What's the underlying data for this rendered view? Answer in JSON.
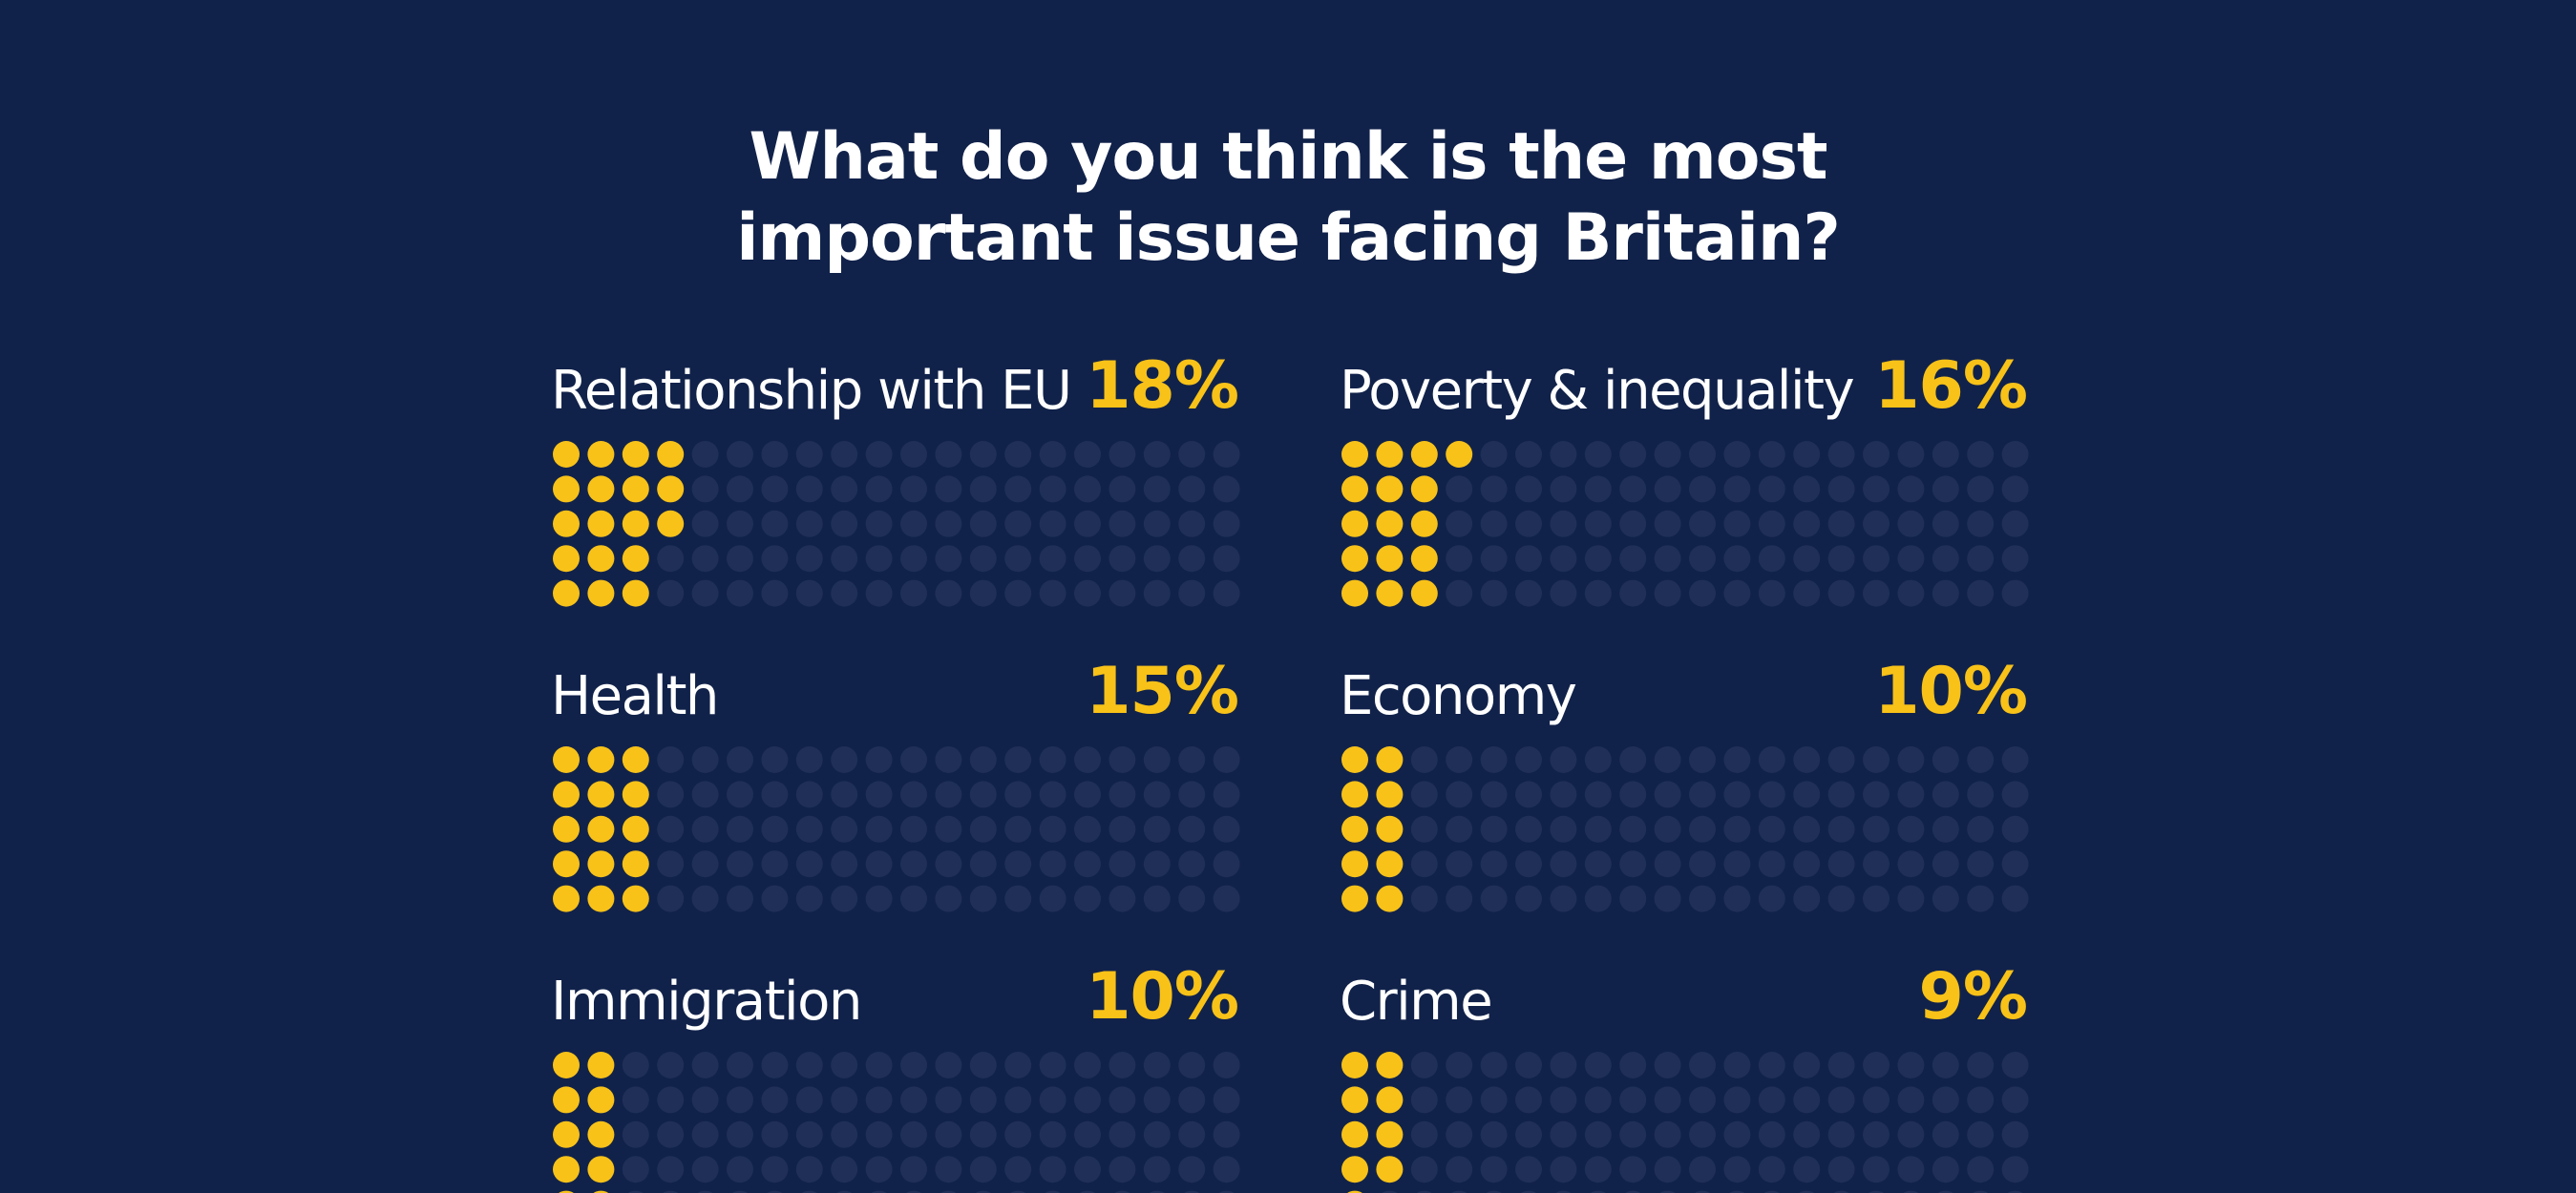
{
  "title_lines": [
    "What do you think is the most",
    "important issue facing Britain?"
  ],
  "colors": {
    "background": "#11224a",
    "filled_dot": "#f8c218",
    "empty_dot": "#1f2f57",
    "label_text": "#ffffff",
    "value_text": "#f8c218"
  },
  "chart_data": {
    "type": "waffle",
    "title": "What do you think is the most important issue facing Britain?",
    "unit": "%",
    "dots_per_panel": 100,
    "dot_rows": 5,
    "dot_columns": 20,
    "fill_order": "column-major, top to bottom",
    "categories": [
      "Relationship with EU",
      "Poverty & inequality",
      "Health",
      "Economy",
      "Immigration",
      "Crime"
    ],
    "values": [
      18,
      16,
      15,
      10,
      10,
      9
    ],
    "value_labels": [
      "18%",
      "16%",
      "15%",
      "10%",
      "10%",
      "9%"
    ]
  }
}
